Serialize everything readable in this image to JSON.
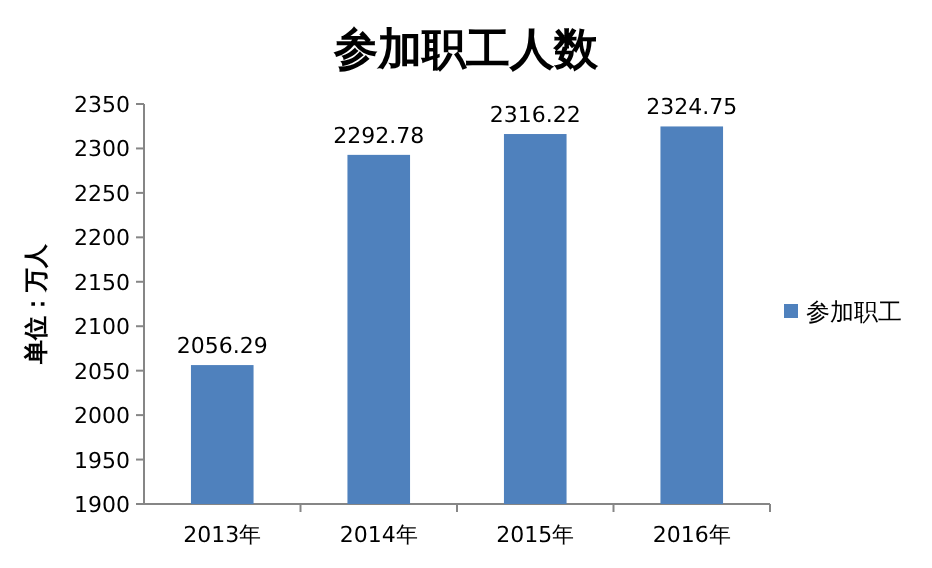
{
  "chart_data": {
    "type": "bar",
    "title": "参加职工人数",
    "ylabel": "单位：万人",
    "categories": [
      "2013年",
      "2014年",
      "2015年",
      "2016年"
    ],
    "series": [
      {
        "name": "参加职工",
        "color": "#4f81bd",
        "values": [
          2056.29,
          2292.78,
          2316.22,
          2324.75
        ]
      }
    ],
    "ylim": [
      1900,
      2350
    ],
    "yticks": [
      1900,
      1950,
      2000,
      2050,
      2100,
      2150,
      2200,
      2250,
      2300,
      2350
    ],
    "data_labels": true,
    "legend": "right"
  }
}
